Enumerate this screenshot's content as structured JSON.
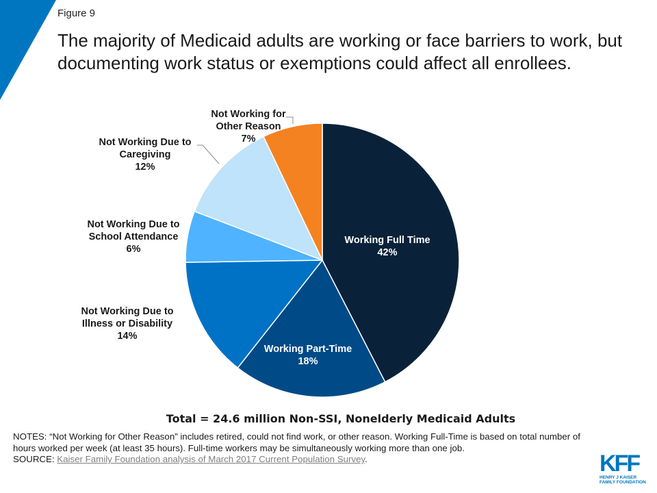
{
  "figure_label": "Figure 9",
  "title": "The majority of Medicaid adults are working or face barriers to work, but documenting work status or exemptions could affect all enrollees.",
  "total_label": "Total = 24.6 million Non-SSI, Nonelderly Medicaid Adults",
  "notes_text": "NOTES: “Not Working for Other Reason” includes retired, could not find work, or other reason. Working Full-Time is based on total number of hours worked per week (at least 35 hours). Full-time workers may be simultaneously working more than one job.",
  "source_prefix": "SOURCE: ",
  "source_link": "Kaiser Family Foundation analysis of March 2017 Current Population Survey",
  "source_suffix": ".",
  "logo": {
    "mark": "KFF",
    "line1": "HENRY J KAISER",
    "line2": "FAMILY FOUNDATION"
  },
  "colors": {
    "accent_blue": "#0076c0"
  },
  "chart_data": {
    "type": "pie",
    "start": "12 o'clock",
    "direction": "clockwise",
    "slices": [
      {
        "label": "Working Full Time",
        "lines": [
          "Working Full Time",
          "42%"
        ],
        "value": 42,
        "color": "#0a2239",
        "label_position": "inside",
        "label_color": "#ffffff"
      },
      {
        "label": "Working Part-Time",
        "lines": [
          "Working Part-Time",
          "18%"
        ],
        "value": 18,
        "color": "#004b87",
        "label_position": "inside",
        "label_color": "#ffffff"
      },
      {
        "label": "Not Working Due to Illness or Disability",
        "lines": [
          "Not Working Due to",
          "Illness or Disability",
          "14%"
        ],
        "value": 14,
        "color": "#0072c6",
        "label_position": "outside-left",
        "label_color": "#1a1a1a"
      },
      {
        "label": "Not Working Due to School Attendance",
        "lines": [
          "Not Working Due to",
          "School Attendance",
          "6%"
        ],
        "value": 6,
        "color": "#4fb3ff",
        "label_position": "outside-left",
        "label_color": "#1a1a1a"
      },
      {
        "label": "Not Working Due to Caregiving",
        "lines": [
          "Not Working Due to",
          "Caregiving",
          "12%"
        ],
        "value": 12,
        "color": "#bfe3fa",
        "label_position": "outside-left",
        "label_color": "#1a1a1a"
      },
      {
        "label": "Not Working for Other Reason",
        "lines": [
          "Not Working for",
          "Other Reason",
          "7%"
        ],
        "value": 7,
        "color": "#f58220",
        "label_position": "outside-top",
        "label_color": "#1a1a1a"
      }
    ]
  }
}
